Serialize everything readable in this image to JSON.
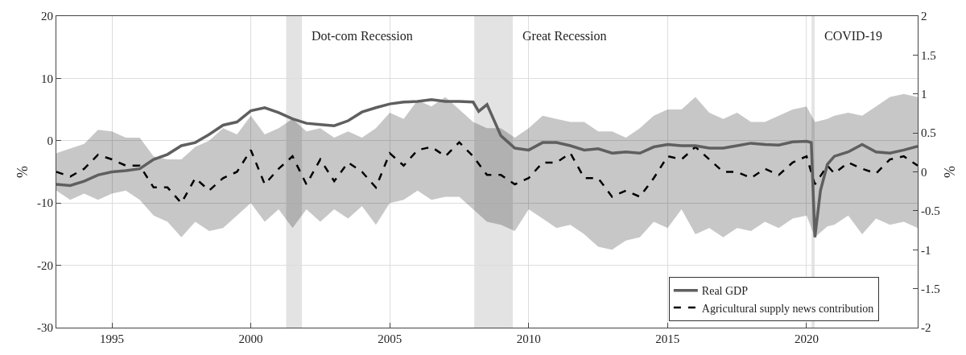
{
  "chart_data": {
    "type": "line",
    "ylabel": "%",
    "y2label": "%",
    "xlim": [
      1993,
      2024
    ],
    "xticks": [
      1995,
      2000,
      2005,
      2010,
      2015,
      2020
    ],
    "ylim": [
      -30,
      20
    ],
    "yticks": [
      -30,
      -20,
      -10,
      0,
      10,
      20
    ],
    "y2lim": [
      -2,
      2
    ],
    "y2ticks": [
      -2,
      -1.5,
      -1,
      -0.5,
      0,
      0.5,
      1,
      1.5,
      2
    ],
    "grid": true,
    "legend": "bottom right",
    "series": [
      {
        "name": "Real GDP",
        "color": "#5f5f5f",
        "line_style": "solid",
        "x": [
          1993,
          1993.5,
          1994,
          1994.5,
          1995,
          1995.5,
          1996,
          1996.5,
          1997,
          1997.5,
          1998,
          1998.5,
          1999,
          1999.5,
          2000,
          2000.5,
          2001,
          2001.5,
          2002,
          2002.5,
          2003,
          2003.5,
          2004,
          2004.5,
          2005,
          2005.5,
          2006,
          2006.5,
          2007,
          2007.5,
          2008,
          2008.2,
          2008.5,
          2009,
          2009.5,
          2010,
          2010.5,
          2011,
          2011.5,
          2012,
          2012.5,
          2013,
          2013.5,
          2014,
          2014.5,
          2015,
          2015.5,
          2016,
          2016.5,
          2017,
          2017.5,
          2018,
          2018.5,
          2019,
          2019.5,
          2020,
          2020.17,
          2020.3,
          2020.5,
          2020.75,
          2021,
          2021.5,
          2022,
          2022.5,
          2023,
          2023.5,
          2024
        ],
        "values": [
          -7,
          -7.2,
          -6.5,
          -5.5,
          -5,
          -4.8,
          -4.5,
          -3,
          -2.2,
          -0.8,
          -0.3,
          1,
          2.5,
          3,
          4.8,
          5.3,
          4.5,
          3.5,
          2.8,
          2.6,
          2.4,
          3.2,
          4.6,
          5.3,
          5.9,
          6.2,
          6.3,
          6.6,
          6.3,
          6.3,
          6.2,
          4.7,
          5.8,
          0.8,
          -1.2,
          -1.5,
          -0.3,
          -0.3,
          -0.8,
          -1.5,
          -1.3,
          -2,
          -1.8,
          -2,
          -1,
          -0.6,
          -0.8,
          -0.8,
          -1.2,
          -1.2,
          -0.8,
          -0.4,
          -0.6,
          -0.7,
          -0.2,
          -0.1,
          -0.3,
          -15.5,
          -8,
          -3.8,
          -2.5,
          -1.8,
          -0.6,
          -1.8,
          -2,
          -1.5,
          -0.9
        ]
      },
      {
        "name": "Agricultural supply news contribution",
        "color": "#000000",
        "line_style": "dashed",
        "axis": "y2",
        "x": [
          1993,
          1993.5,
          1994,
          1994.5,
          1995,
          1995.5,
          1996,
          1996.5,
          1997,
          1997.5,
          1998,
          1998.5,
          1999,
          1999.5,
          2000,
          2000.5,
          2001,
          2001.5,
          2002,
          2002.5,
          2003,
          2003.5,
          2004,
          2004.5,
          2005,
          2005.5,
          2006,
          2006.5,
          2007,
          2007.5,
          2008,
          2008.5,
          2009,
          2009.5,
          2010,
          2010.5,
          2011,
          2011.5,
          2012,
          2012.5,
          2013,
          2013.5,
          2014,
          2014.5,
          2015,
          2015.5,
          2016,
          2016.5,
          2017,
          2017.5,
          2018,
          2018.5,
          2019,
          2019.5,
          2020,
          2020.3,
          2020.75,
          2021,
          2021.5,
          2022,
          2022.5,
          2023,
          2023.5,
          2024
        ],
        "values": [
          0,
          -0.06,
          0.04,
          0.22,
          0.16,
          0.08,
          0.08,
          -0.2,
          -0.2,
          -0.4,
          -0.08,
          -0.24,
          -0.08,
          0,
          0.28,
          -0.16,
          0.04,
          0.2,
          -0.16,
          0.16,
          -0.12,
          0.12,
          0,
          -0.2,
          0.24,
          0.08,
          0.28,
          0.32,
          0.2,
          0.38,
          0.2,
          -0.04,
          -0.04,
          -0.16,
          -0.08,
          0.12,
          0.12,
          0.24,
          -0.08,
          -0.08,
          -0.32,
          -0.24,
          -0.32,
          -0.08,
          0.2,
          0.16,
          0.32,
          0.16,
          0,
          0,
          -0.08,
          0.04,
          -0.04,
          0.12,
          0.2,
          -0.16,
          0.08,
          -0.02,
          0.12,
          0.04,
          -0.02,
          0.16,
          0.2,
          0.08
        ],
        "upper": [
          0.24,
          0.3,
          0.36,
          0.54,
          0.52,
          0.44,
          0.44,
          0.2,
          0.16,
          0.16,
          0.32,
          0.4,
          0.56,
          0.48,
          0.72,
          0.48,
          0.56,
          0.68,
          0.52,
          0.56,
          0.44,
          0.52,
          0.44,
          0.56,
          0.76,
          0.68,
          0.92,
          0.84,
          0.96,
          0.8,
          0.64,
          0.56,
          0.56,
          0.44,
          0.56,
          0.72,
          0.68,
          0.64,
          0.64,
          0.52,
          0.52,
          0.44,
          0.56,
          0.72,
          0.8,
          0.8,
          0.96,
          0.76,
          0.68,
          0.76,
          0.64,
          0.64,
          0.72,
          0.8,
          0.84,
          0.64,
          0.68,
          0.72,
          0.76,
          0.72,
          0.84,
          0.96,
          1.0,
          0.96
        ],
        "lower": [
          -0.24,
          -0.36,
          -0.28,
          -0.36,
          -0.28,
          -0.24,
          -0.36,
          -0.56,
          -0.64,
          -0.84,
          -0.64,
          -0.76,
          -0.72,
          -0.56,
          -0.4,
          -0.64,
          -0.48,
          -0.72,
          -0.48,
          -0.64,
          -0.48,
          -0.6,
          -0.44,
          -0.68,
          -0.4,
          -0.36,
          -0.24,
          -0.36,
          -0.32,
          -0.32,
          -0.48,
          -0.64,
          -0.68,
          -0.76,
          -0.48,
          -0.6,
          -0.72,
          -0.68,
          -0.8,
          -0.96,
          -1.0,
          -0.88,
          -0.84,
          -0.64,
          -0.72,
          -0.48,
          -0.8,
          -0.72,
          -0.84,
          -0.72,
          -0.76,
          -0.64,
          -0.72,
          -0.6,
          -0.56,
          -0.84,
          -0.7,
          -0.68,
          -0.56,
          -0.8,
          -0.6,
          -0.68,
          -0.64,
          -0.72
        ]
      }
    ],
    "bands": [
      {
        "axis": "x",
        "from": 2001.27,
        "to": 2001.84,
        "label": "Dot-com Recession",
        "color": "#e3e3e3"
      },
      {
        "axis": "x",
        "from": 2008.04,
        "to": 2009.43,
        "label": "Great Recession",
        "color": "#e3e3e3"
      },
      {
        "axis": "x",
        "from": 2020.18,
        "to": 2020.29,
        "label": "COVID-19",
        "color": "#e3e3e3"
      }
    ]
  }
}
